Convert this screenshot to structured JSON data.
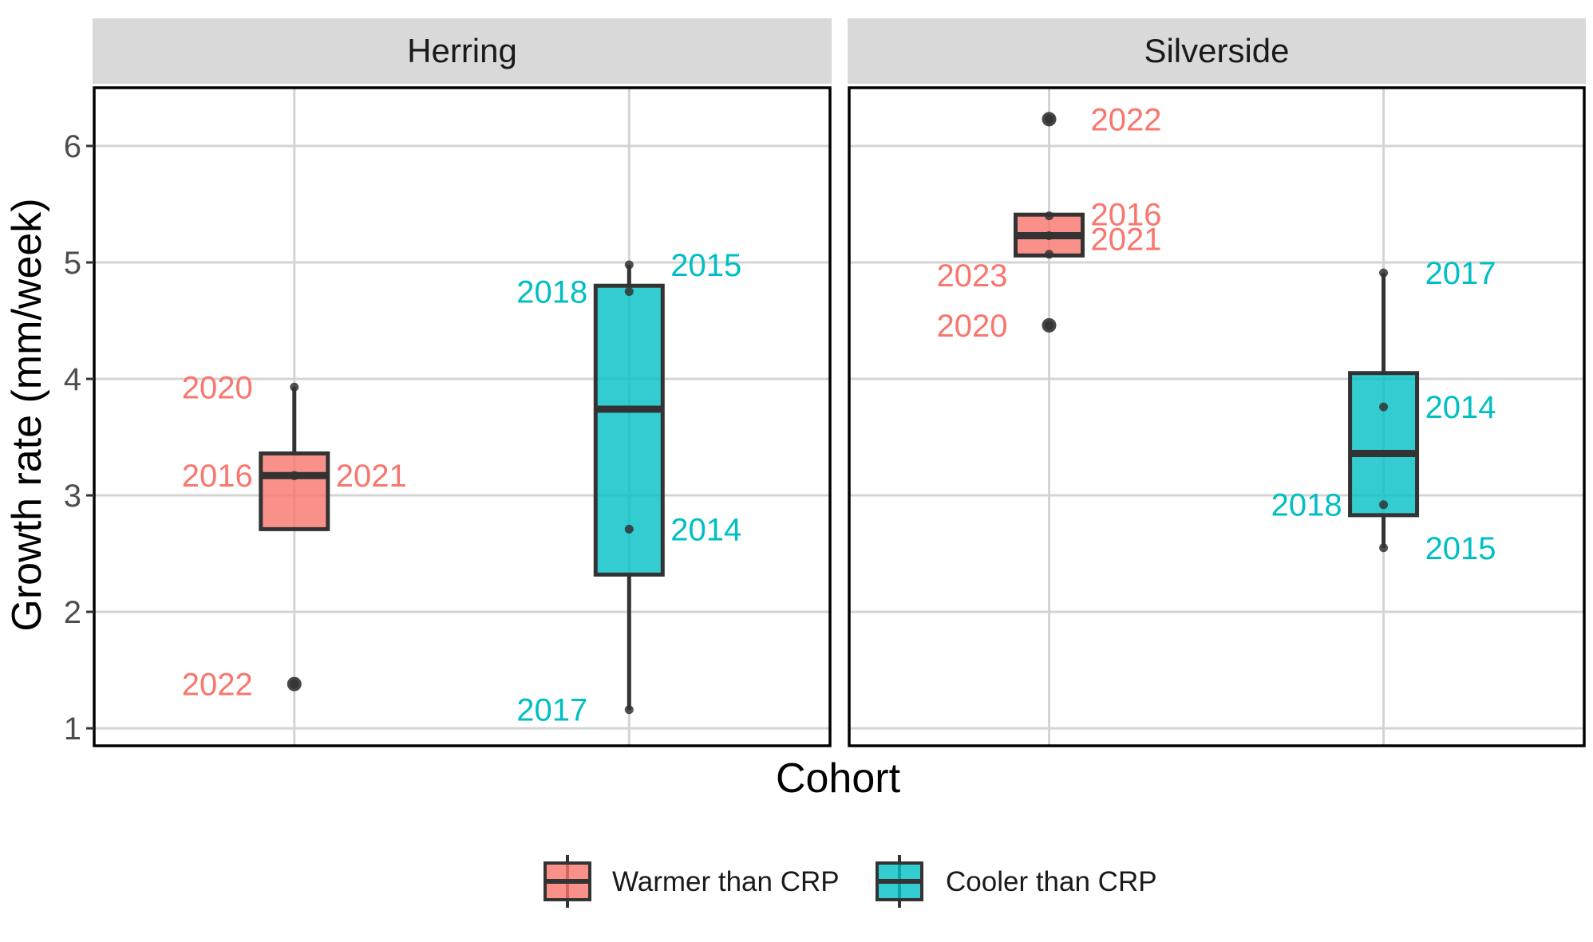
{
  "chart_data": {
    "type": "boxplot",
    "xlabel": "Cohort",
    "ylabel": "Growth rate (mm/week)",
    "ylim": [
      0.85,
      6.5
    ],
    "y_ticks": [
      "1",
      "2",
      "3",
      "4",
      "5",
      "6"
    ],
    "grid": true,
    "legend_position": "bottom",
    "legend": [
      {
        "label": "Warmer than CRP",
        "color": "#F8766D"
      },
      {
        "label": "Cooler than CRP",
        "color": "#00BFC4"
      }
    ],
    "facets": [
      {
        "title": "Herring",
        "boxes": [
          {
            "group": "Warmer than CRP",
            "stats": {
              "lower_whisker": 2.71,
              "q1": 2.71,
              "median": 3.17,
              "q3": 3.36,
              "upper_whisker": 3.93
            },
            "outliers": [
              1.38
            ],
            "points": [
              {
                "year": "2020",
                "value": 3.93
              },
              {
                "year": "2016",
                "value": 3.17
              },
              {
                "year": "2021",
                "value": 3.17
              },
              {
                "year": "2022",
                "value": 1.38
              }
            ]
          },
          {
            "group": "Cooler than CRP",
            "stats": {
              "lower_whisker": 1.16,
              "q1": 2.32,
              "median": 3.74,
              "q3": 4.8,
              "upper_whisker": 4.98
            },
            "outliers": [],
            "points": [
              {
                "year": "2015",
                "value": 4.98
              },
              {
                "year": "2018",
                "value": 4.75
              },
              {
                "year": "2014",
                "value": 2.71
              },
              {
                "year": "2017",
                "value": 1.16
              }
            ]
          }
        ]
      },
      {
        "title": "Silverside",
        "boxes": [
          {
            "group": "Warmer than CRP",
            "stats": {
              "lower_whisker": 5.06,
              "q1": 5.06,
              "median": 5.23,
              "q3": 5.41,
              "upper_whisker": 5.41
            },
            "outliers": [
              6.23,
              4.46
            ],
            "points": [
              {
                "year": "2022",
                "value": 6.23
              },
              {
                "year": "2016",
                "value": 5.4
              },
              {
                "year": "2021",
                "value": 5.23
              },
              {
                "year": "2023",
                "value": 5.07
              },
              {
                "year": "2020",
                "value": 4.46
              }
            ]
          },
          {
            "group": "Cooler than CRP",
            "stats": {
              "lower_whisker": 2.55,
              "q1": 2.83,
              "median": 3.36,
              "q3": 4.05,
              "upper_whisker": 4.91
            },
            "outliers": [],
            "points": [
              {
                "year": "2017",
                "value": 4.91
              },
              {
                "year": "2014",
                "value": 3.76
              },
              {
                "year": "2018",
                "value": 2.92
              },
              {
                "year": "2015",
                "value": 2.55
              }
            ]
          }
        ]
      }
    ]
  }
}
